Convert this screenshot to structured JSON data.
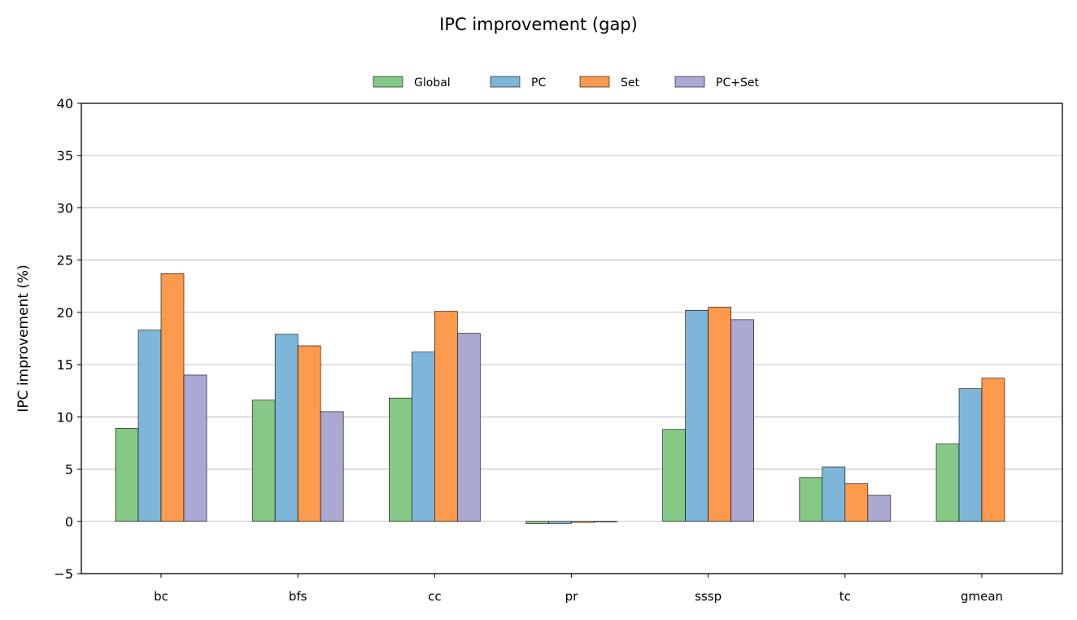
{
  "chart_data": {
    "type": "bar",
    "title": "IPC improvement (gap)",
    "xlabel": "",
    "ylabel": "IPC improvement (%)",
    "ylim": [
      -5,
      40
    ],
    "yticks": [
      -5,
      0,
      5,
      10,
      15,
      20,
      25,
      30,
      35,
      40
    ],
    "grid": "horizontal",
    "legend_position": "top-center",
    "categories": [
      "bc",
      "bfs",
      "cc",
      "pr",
      "sssp",
      "tc",
      "gmean"
    ],
    "series": [
      {
        "name": "Global",
        "color": "#86c986",
        "values": [
          8.9,
          11.6,
          11.8,
          -0.2,
          8.8,
          4.2,
          7.4
        ]
      },
      {
        "name": "PC",
        "color": "#7eb6d9",
        "values": [
          18.3,
          17.9,
          16.2,
          -0.2,
          20.2,
          5.2,
          12.7
        ]
      },
      {
        "name": "Set",
        "color": "#fe9a4d",
        "values": [
          23.7,
          16.8,
          20.1,
          -0.1,
          20.5,
          3.6,
          13.7
        ]
      },
      {
        "name": "PC+Set",
        "color": "#aba8d3",
        "values": [
          14.0,
          10.5,
          18.0,
          0.0,
          19.3,
          2.5,
          null
        ]
      }
    ]
  }
}
